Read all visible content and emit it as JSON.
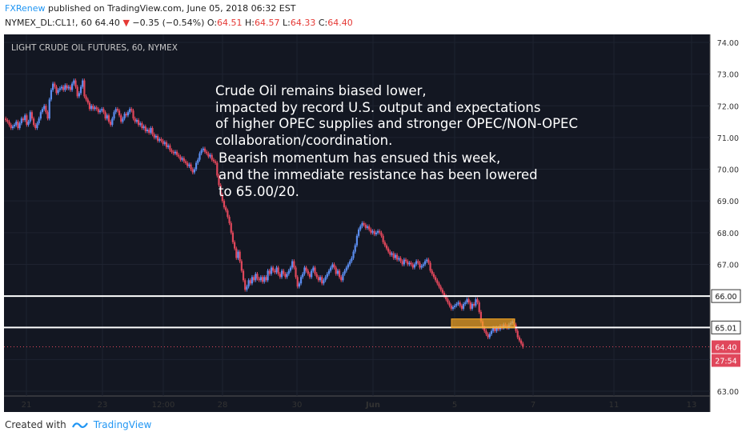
{
  "header": {
    "author": "FXRenew",
    "published_text": "published on TradingView.com, June 05, 2018 06:32 EST",
    "symbol_line": "NYMEX_DL:CL1!, 60",
    "last": "64.40",
    "change": "−0.35 (−0.54%)",
    "o_label": "O:",
    "o_value": "64.51",
    "h_label": "H:",
    "h_value": "64.57",
    "l_label": "L:",
    "l_value": "64.33",
    "c_label": "C:",
    "c_value": "64.40"
  },
  "footer": {
    "created_with": "Created with",
    "brand": "TradingView"
  },
  "chart_data": {
    "type": "candlestick",
    "title": "LIGHT CRUDE OIL FUTURES, 60, NYMEX",
    "annotation_lines": [
      "Crude Oil remains biased lower,",
      "impacted by record U.S. output and expectations",
      "of higher OPEC supplies and stronger OPEC/NON-OPEC",
      "collaboration/coordination.",
      " Bearish momentum has ensued this week,",
      " and the immediate resistance has been lowered",
      " to 65.00/20."
    ],
    "ylim": [
      63.0,
      74.0
    ],
    "y_ticks": [
      "74.00",
      "73.00",
      "72.00",
      "71.00",
      "70.00",
      "69.00",
      "68.00",
      "67.00",
      "66.00",
      "65.00",
      "64.00",
      "63.00"
    ],
    "x_ticks": [
      "21",
      "23",
      "12:00",
      "28",
      "30",
      "Jun",
      "5",
      "7",
      "11",
      "13"
    ],
    "horizontal_lines": [
      {
        "value": 66.0,
        "label": "66.00"
      },
      {
        "value": 65.01,
        "label": "65.01"
      }
    ],
    "current_price": {
      "value": 64.4,
      "label": "64.40",
      "countdown": "27:54"
    },
    "resistance_zone": {
      "y_low": 65.0,
      "y_high": 65.28
    },
    "price_path": [
      71.6,
      71.55,
      71.5,
      71.4,
      71.3,
      71.35,
      71.4,
      71.5,
      71.3,
      71.45,
      71.6,
      71.55,
      71.7,
      71.4,
      71.5,
      71.8,
      71.6,
      71.4,
      71.3,
      71.45,
      71.6,
      71.8,
      71.9,
      72.0,
      71.8,
      71.6,
      72.2,
      72.5,
      72.7,
      72.6,
      72.4,
      72.5,
      72.55,
      72.6,
      72.5,
      72.65,
      72.55,
      72.6,
      72.5,
      72.7,
      72.8,
      72.6,
      72.3,
      72.4,
      72.6,
      72.8,
      72.3,
      72.2,
      72.1,
      71.9,
      72.0,
      71.9,
      71.95,
      71.9,
      71.8,
      71.85,
      71.9,
      71.8,
      71.6,
      71.7,
      71.5,
      71.4,
      71.6,
      71.8,
      71.9,
      71.85,
      71.7,
      71.5,
      71.6,
      71.75,
      71.7,
      71.8,
      71.9,
      71.85,
      71.6,
      71.5,
      71.55,
      71.4,
      71.45,
      71.3,
      71.35,
      71.2,
      71.25,
      71.15,
      71.3,
      71.1,
      71.0,
      71.05,
      70.9,
      70.95,
      70.9,
      70.8,
      70.85,
      70.7,
      70.75,
      70.6,
      70.55,
      70.5,
      70.55,
      70.45,
      70.4,
      70.3,
      70.35,
      70.25,
      70.2,
      70.1,
      70.15,
      70.0,
      69.9,
      70.0,
      70.2,
      70.3,
      70.5,
      70.6,
      70.65,
      70.55,
      70.5,
      70.4,
      70.45,
      70.3,
      70.25,
      70.2,
      69.8,
      69.5,
      69.2,
      69.0,
      68.8,
      68.7,
      68.5,
      68.3,
      68.0,
      67.7,
      67.5,
      67.2,
      67.4,
      67.1,
      66.8,
      66.5,
      66.2,
      66.3,
      66.5,
      66.4,
      66.6,
      66.5,
      66.7,
      66.55,
      66.5,
      66.6,
      66.45,
      66.6,
      66.5,
      66.8,
      66.7,
      66.9,
      66.8,
      66.75,
      66.9,
      66.7,
      66.6,
      66.8,
      66.7,
      66.6,
      66.7,
      66.8,
      66.9,
      67.1,
      66.9,
      66.6,
      66.3,
      66.4,
      66.6,
      66.7,
      66.9,
      66.8,
      66.7,
      66.6,
      66.8,
      66.9,
      66.7,
      66.6,
      66.5,
      66.6,
      66.4,
      66.5,
      66.6,
      66.7,
      66.8,
      66.9,
      67.0,
      66.9,
      66.7,
      66.8,
      66.6,
      66.5,
      66.7,
      66.8,
      66.9,
      67.0,
      67.1,
      67.2,
      67.4,
      67.6,
      67.9,
      68.1,
      68.2,
      68.3,
      68.25,
      68.15,
      68.2,
      68.1,
      68.0,
      68.05,
      67.95,
      68.0,
      68.05,
      68.0,
      67.9,
      67.7,
      67.6,
      67.5,
      67.4,
      67.3,
      67.35,
      67.2,
      67.3,
      67.15,
      67.2,
      67.1,
      67.0,
      67.15,
      67.1,
      67.0,
      67.05,
      67.0,
      66.9,
      67.0,
      67.1,
      67.05,
      66.9,
      66.95,
      67.0,
      67.1,
      67.15,
      67.05,
      66.8,
      66.7,
      66.6,
      66.5,
      66.4,
      66.3,
      66.2,
      66.1,
      66.0,
      65.9,
      65.8,
      65.7,
      65.6,
      65.65,
      65.7,
      65.75,
      65.8,
      65.7,
      65.6,
      65.75,
      65.8,
      65.9,
      65.8,
      65.6,
      65.75,
      65.7,
      65.9,
      65.8,
      65.5,
      65.2,
      65.0,
      64.9,
      64.8,
      64.7,
      64.8,
      64.9,
      65.0,
      64.9,
      65.0,
      64.95,
      65.05,
      65.0,
      65.1,
      65.05,
      65.0,
      65.1,
      65.15,
      65.2,
      65.1,
      64.9,
      64.7,
      64.6,
      64.5,
      64.4
    ],
    "price_path_x_start": 0.0,
    "price_path_x_end": 0.735
  }
}
